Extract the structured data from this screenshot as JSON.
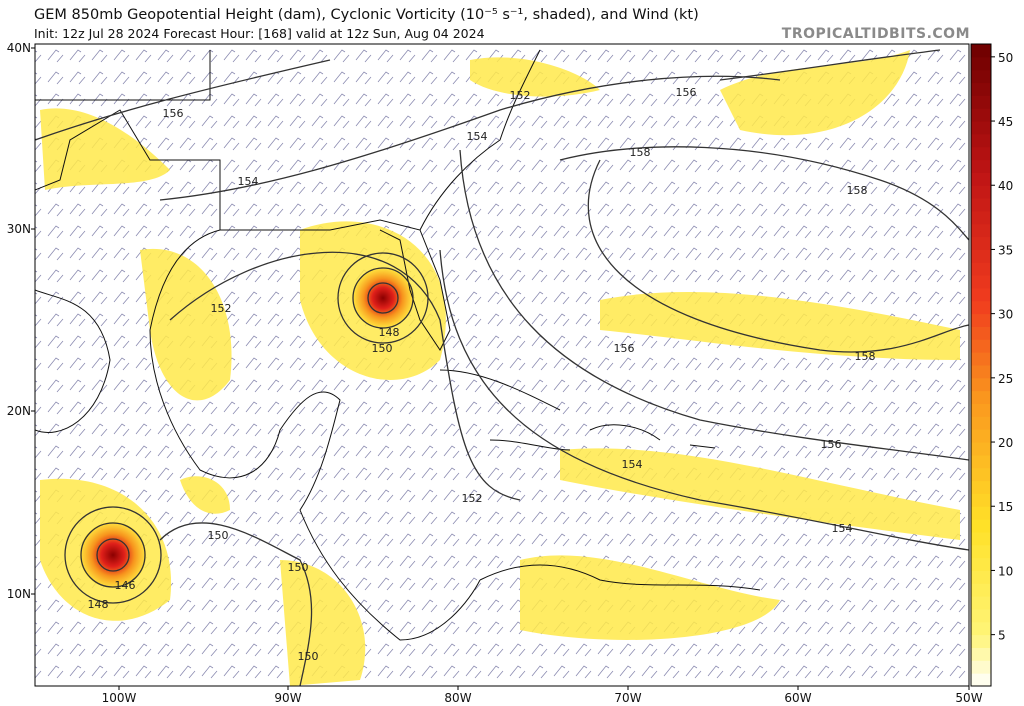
{
  "header": {
    "title": "GEM 850mb Geopotential Height (dam), Cyclonic Vorticity (10⁻⁵ s⁻¹, shaded), and Wind (kt)",
    "subtitle": "Init: 12z Jul 28 2024   Forecast Hour: [168]   valid at 12z Sun, Aug 04 2024",
    "site": "TROPICALTIDBITS.COM"
  },
  "map": {
    "lat_labels": [
      "40N",
      "30N",
      "20N",
      "10N"
    ],
    "lon_labels": [
      "100W",
      "90W",
      "80W",
      "70W",
      "60W",
      "50W"
    ],
    "contour_labels": [
      "156",
      "154",
      "152",
      "154",
      "156",
      "158",
      "158",
      "152",
      "148",
      "150",
      "156",
      "158",
      "156",
      "154",
      "152",
      "154",
      "150",
      "150",
      "146",
      "148",
      "150"
    ]
  },
  "colorbar": {
    "lim": [
      1,
      51
    ],
    "ticks": [
      5,
      10,
      15,
      20,
      25,
      30,
      35,
      40,
      45,
      50
    ]
  }
}
